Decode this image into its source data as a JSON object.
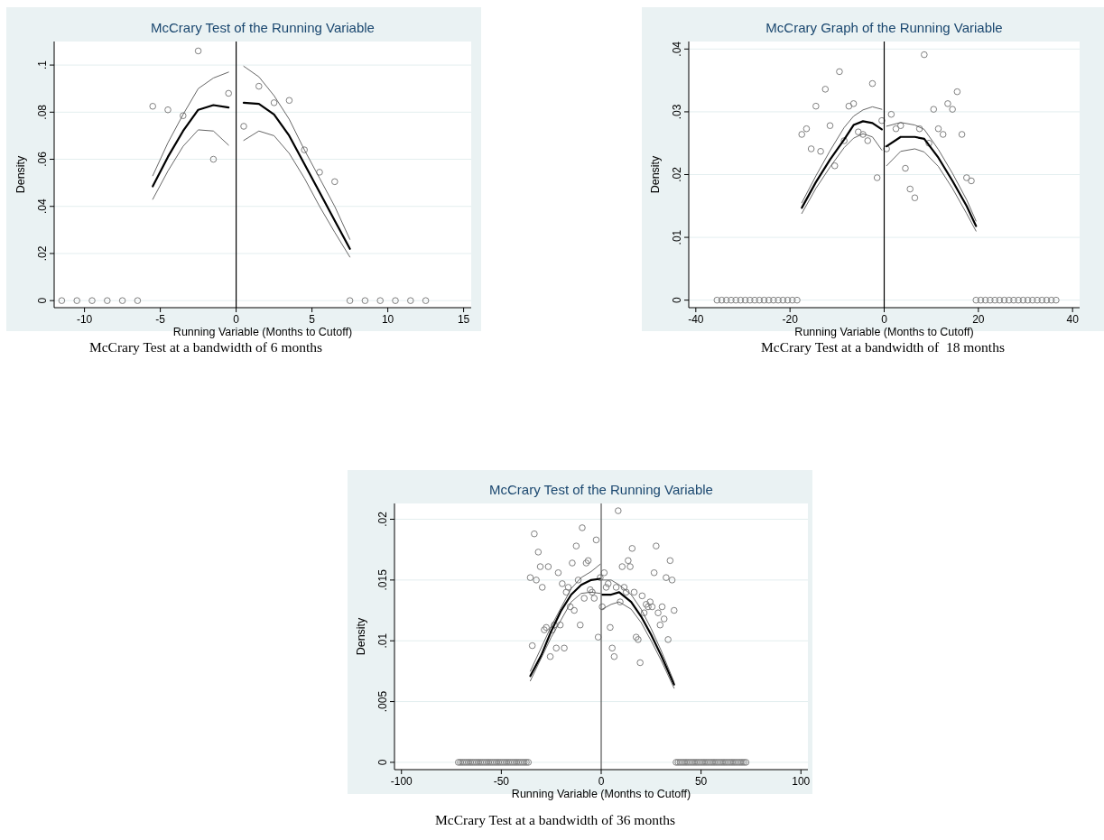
{
  "chart_data": [
    {
      "type": "scatter",
      "title": "McCrary Test of the Running Variable",
      "xlabel": "Running Variable (Months to Cutoff)",
      "ylabel": "Density",
      "xlim": [
        -12,
        15.5
      ],
      "ylim": [
        -0.003,
        0.11
      ],
      "xticks": [
        -10,
        -5,
        0,
        5,
        10,
        15
      ],
      "yticks": [
        {
          "value": 0,
          "label": "0"
        },
        {
          "value": 0.02,
          "label": ".02"
        },
        {
          "value": 0.04,
          "label": ".04"
        },
        {
          "value": 0.06,
          "label": ".06"
        },
        {
          "value": 0.08,
          "label": ".08"
        },
        {
          "value": 0.1,
          "label": ".1"
        }
      ],
      "grid": "y",
      "annotations": [
        "McCrary Test at a bandwidth of 6 months"
      ],
      "ref_lines": [
        {
          "axis": "x",
          "value": 0,
          "color": "#000000"
        }
      ],
      "series": [
        {
          "type": "scatter",
          "marker": "circle",
          "color": "#808080",
          "x": [
            -11.5,
            -10.5,
            -9.5,
            -8.5,
            -7.5,
            -6.5,
            -5.5,
            -4.5,
            -3.5,
            -2.5,
            -1.5,
            -0.5,
            0.5,
            1.5,
            2.5,
            3.5,
            4.5,
            5.5,
            6.5,
            7.5,
            8.5,
            9.5,
            10.5,
            11.5,
            12.5
          ],
          "values": [
            0,
            0,
            0,
            0,
            0,
            0,
            0.0825,
            0.081,
            0.0785,
            0.106,
            0.06,
            0.088,
            0.074,
            0.091,
            0.084,
            0.085,
            0.064,
            0.0545,
            0.0505,
            0,
            0,
            0,
            0,
            0,
            0
          ]
        },
        {
          "type": "line",
          "color": "#000000",
          "x": [
            -5.5,
            -4.5,
            -3.5,
            -2.5,
            -1.5,
            -0.5
          ],
          "values": [
            0.0485,
            0.061,
            0.072,
            0.081,
            0.083,
            0.082
          ]
        },
        {
          "type": "line",
          "color": "#555555",
          "x": [
            -5.5,
            -4.5,
            -3.5,
            -2.5,
            -1.5,
            -0.5
          ],
          "values": [
            0.053,
            0.067,
            0.079,
            0.09,
            0.0945,
            0.097
          ]
        },
        {
          "type": "line",
          "color": "#555555",
          "x": [
            -5.5,
            -4.5,
            -3.5,
            -2.5,
            -1.5,
            -0.5
          ],
          "values": [
            0.043,
            0.055,
            0.0655,
            0.0725,
            0.072,
            0.066
          ]
        },
        {
          "type": "line",
          "color": "#000000",
          "x": [
            0.5,
            1.5,
            2.5,
            3.5,
            4.5,
            5.5,
            6.5,
            7.5
          ],
          "values": [
            0.084,
            0.0835,
            0.079,
            0.07,
            0.058,
            0.046,
            0.034,
            0.022
          ]
        },
        {
          "type": "line",
          "color": "#555555",
          "x": [
            0.5,
            1.5,
            2.5,
            3.5,
            4.5,
            5.5,
            6.5,
            7.5
          ],
          "values": [
            0.0995,
            0.095,
            0.087,
            0.077,
            0.064,
            0.052,
            0.04,
            0.026
          ]
        },
        {
          "type": "line",
          "color": "#555555",
          "x": [
            0.5,
            1.5,
            2.5,
            3.5,
            4.5,
            5.5,
            6.5,
            7.5
          ],
          "values": [
            0.068,
            0.072,
            0.07,
            0.0625,
            0.052,
            0.04,
            0.029,
            0.0185
          ]
        }
      ]
    },
    {
      "type": "scatter",
      "title": "McCrary Graph of the Running Variable",
      "xlabel": "Running Variable (Months to Cutoff)",
      "ylabel": "Density",
      "xlim": [
        -41.5,
        41.5
      ],
      "ylim": [
        -0.0012,
        0.0412
      ],
      "xticks": [
        -40,
        -20,
        0,
        20,
        40
      ],
      "yticks": [
        {
          "value": 0,
          "label": "0"
        },
        {
          "value": 0.01,
          "label": ".01"
        },
        {
          "value": 0.02,
          "label": ".02"
        },
        {
          "value": 0.03,
          "label": ".03"
        },
        {
          "value": 0.04,
          "label": ".04"
        }
      ],
      "grid": "y",
      "annotations": [
        "McCrary Test at a bandwidth of  18 months"
      ],
      "ref_lines": [
        {
          "axis": "x",
          "value": 0,
          "color": "#000000"
        }
      ],
      "series": [
        {
          "type": "scatter",
          "marker": "circle",
          "color": "#808080",
          "x": [
            -35.5,
            -34.5,
            -33.5,
            -32.5,
            -31.5,
            -30.5,
            -29.5,
            -28.5,
            -27.5,
            -26.5,
            -25.5,
            -24.5,
            -23.5,
            -22.5,
            -21.5,
            -20.5,
            -19.5,
            -18.5,
            -17.5,
            -16.5,
            -15.5,
            -14.5,
            -13.5,
            -12.5,
            -11.5,
            -10.5,
            -9.5,
            -8.5,
            -7.5,
            -6.5,
            -5.5,
            -4.5,
            -3.5,
            -2.5,
            -1.5,
            -0.5,
            0.5,
            1.5,
            2.5,
            3.5,
            4.5,
            5.5,
            6.5,
            7.5,
            8.5,
            9.5,
            10.5,
            11.5,
            12.5,
            13.5,
            14.5,
            15.5,
            16.5,
            17.5,
            18.5,
            19.5,
            20.5,
            21.5,
            22.5,
            23.5,
            24.5,
            25.5,
            26.5,
            27.5,
            28.5,
            29.5,
            30.5,
            31.5,
            32.5,
            33.5,
            34.5,
            35.5,
            36.5
          ],
          "values": [
            0,
            0,
            0,
            0,
            0,
            0,
            0,
            0,
            0,
            0,
            0,
            0,
            0,
            0,
            0,
            0,
            0,
            0,
            0.0264,
            0.0273,
            0.0241,
            0.0309,
            0.0237,
            0.0336,
            0.0278,
            0.0214,
            0.0364,
            0.0254,
            0.0309,
            0.0313,
            0.0268,
            0.0264,
            0.0254,
            0.0345,
            0.0195,
            0.0286,
            0.0241,
            0.0296,
            0.0273,
            0.0278,
            0.021,
            0.0177,
            0.0163,
            0.0273,
            0.0391,
            0.025,
            0.0304,
            0.0273,
            0.0264,
            0.0313,
            0.0304,
            0.0332,
            0.0264,
            0.0195,
            0.019,
            0,
            0,
            0,
            0,
            0,
            0,
            0,
            0,
            0,
            0,
            0,
            0,
            0,
            0,
            0,
            0,
            0,
            0
          ]
        },
        {
          "type": "line",
          "color": "#000000",
          "x": [
            -17.5,
            -14.5,
            -11.5,
            -8.5,
            -6.5,
            -4.5,
            -2.5,
            -0.5
          ],
          "values": [
            0.0147,
            0.0188,
            0.0224,
            0.0256,
            0.0279,
            0.0285,
            0.0282,
            0.0272
          ]
        },
        {
          "type": "line",
          "color": "#555555",
          "x": [
            -17.5,
            -14.5,
            -11.5,
            -8.5,
            -6.5,
            -4.5,
            -2.5,
            -0.5
          ],
          "values": [
            0.0155,
            0.0198,
            0.0238,
            0.0275,
            0.0293,
            0.0303,
            0.0308,
            0.0304
          ]
        },
        {
          "type": "line",
          "color": "#555555",
          "x": [
            -17.5,
            -14.5,
            -11.5,
            -8.5,
            -6.5,
            -4.5,
            -2.5,
            -0.5
          ],
          "values": [
            0.0138,
            0.0178,
            0.0212,
            0.0243,
            0.0258,
            0.0265,
            0.026,
            0.0239
          ]
        },
        {
          "type": "line",
          "color": "#000000",
          "x": [
            0.5,
            3.5,
            6.5,
            8.5,
            11.5,
            14.5,
            17.5,
            19.5
          ],
          "values": [
            0.0245,
            0.026,
            0.026,
            0.0257,
            0.0227,
            0.019,
            0.015,
            0.0118
          ]
        },
        {
          "type": "line",
          "color": "#555555",
          "x": [
            0.5,
            3.5,
            6.5,
            8.5,
            11.5,
            14.5,
            17.5,
            19.5
          ],
          "values": [
            0.0277,
            0.0283,
            0.0279,
            0.0272,
            0.024,
            0.0202,
            0.016,
            0.0126
          ]
        },
        {
          "type": "line",
          "color": "#555555",
          "x": [
            0.5,
            3.5,
            6.5,
            8.5,
            11.5,
            14.5,
            17.5,
            19.5
          ],
          "values": [
            0.0214,
            0.0237,
            0.0241,
            0.0236,
            0.0213,
            0.0178,
            0.0138,
            0.011
          ]
        }
      ]
    },
    {
      "type": "scatter",
      "title": "McCrary Test of the Running Variable",
      "xlabel": "Running Variable (Months to Cutoff)",
      "ylabel": "Density",
      "xlim": [
        -103.5,
        103.5
      ],
      "ylim": [
        -0.0006,
        0.0213
      ],
      "xticks": [
        -100,
        -50,
        0,
        50,
        100
      ],
      "yticks": [
        {
          "value": 0,
          "label": "0"
        },
        {
          "value": 0.005,
          "label": ".005"
        },
        {
          "value": 0.01,
          "label": ".01"
        },
        {
          "value": 0.015,
          "label": ".015"
        },
        {
          "value": 0.02,
          "label": ".02"
        }
      ],
      "grid": "y",
      "annotations": [
        "McCrary Test at a bandwidth of 36 months"
      ],
      "ref_lines": [
        {
          "axis": "x",
          "value": 0,
          "color": "#555555"
        }
      ],
      "series": [
        {
          "type": "scatter",
          "marker": "circle",
          "color": "#808080",
          "x": [
            -71.5,
            -70.5,
            -69.5,
            -68.5,
            -67.5,
            -66.5,
            -65.5,
            -64.5,
            -63.5,
            -62.5,
            -61.5,
            -60.5,
            -59.5,
            -58.5,
            -57.5,
            -56.5,
            -55.5,
            -54.5,
            -53.5,
            -52.5,
            -51.5,
            -50.5,
            -49.5,
            -48.5,
            -47.5,
            -46.5,
            -45.5,
            -44.5,
            -43.5,
            -42.5,
            -41.5,
            -40.5,
            -39.5,
            -38.5,
            -37.5,
            -36.5,
            -35.5,
            -34.5,
            -33.5,
            -32.5,
            -31.5,
            -30.5,
            -29.5,
            -28.5,
            -27.5,
            -26.5,
            -25.5,
            -24.5,
            -23.5,
            -22.5,
            -21.5,
            -20.5,
            -19.5,
            -18.5,
            -17.5,
            -16.5,
            -15.5,
            -14.5,
            -13.5,
            -12.5,
            -11.5,
            -10.5,
            -9.5,
            -8.5,
            -7.5,
            -6.5,
            -5.5,
            -4.5,
            -3.5,
            -2.5,
            -1.5,
            -0.5,
            0.5,
            1.5,
            2.5,
            3.5,
            4.5,
            5.5,
            6.5,
            7.5,
            8.5,
            9.5,
            10.5,
            11.5,
            12.5,
            13.5,
            14.5,
            15.5,
            16.5,
            17.5,
            18.5,
            19.5,
            20.5,
            21.5,
            22.5,
            23.5,
            24.5,
            25.5,
            26.5,
            27.5,
            28.5,
            29.5,
            30.5,
            31.5,
            32.5,
            33.5,
            34.5,
            35.5,
            36.5,
            37.5,
            38.5,
            39.5,
            40.5,
            41.5,
            42.5,
            43.5,
            44.5,
            45.5,
            46.5,
            47.5,
            48.5,
            49.5,
            50.5,
            51.5,
            52.5,
            53.5,
            54.5,
            55.5,
            56.5,
            57.5,
            58.5,
            59.5,
            60.5,
            61.5,
            62.5,
            63.5,
            64.5,
            65.5,
            66.5,
            67.5,
            68.5,
            69.5,
            70.5,
            71.5,
            72.5
          ],
          "values": [
            0,
            0,
            0,
            0,
            0,
            0,
            0,
            0,
            0,
            0,
            0,
            0,
            0,
            0,
            0,
            0,
            0,
            0,
            0,
            0,
            0,
            0,
            0,
            0,
            0,
            0,
            0,
            0,
            0,
            0,
            0,
            0,
            0,
            0,
            0,
            0,
            0.0152,
            0.0096,
            0.0188,
            0.015,
            0.0173,
            0.0161,
            0.0144,
            0.0109,
            0.0111,
            0.0161,
            0.0087,
            0.0109,
            0.0113,
            0.0094,
            0.0156,
            0.0113,
            0.0147,
            0.0094,
            0.014,
            0.0144,
            0.0128,
            0.0164,
            0.0125,
            0.0178,
            0.015,
            0.0113,
            0.0193,
            0.0135,
            0.0164,
            0.0166,
            0.0142,
            0.014,
            0.0135,
            0.0183,
            0.0103,
            0.0152,
            0.0128,
            0.0156,
            0.0144,
            0.0147,
            0.0111,
            0.0094,
            0.0087,
            0.0144,
            0.0207,
            0.0132,
            0.0161,
            0.0144,
            0.014,
            0.0166,
            0.0161,
            0.0176,
            0.014,
            0.0103,
            0.0101,
            0.0082,
            0.0137,
            0.0123,
            0.013,
            0.0128,
            0.0132,
            0.0128,
            0.0156,
            0.0178,
            0.0123,
            0.0113,
            0.0128,
            0.0118,
            0.0152,
            0.0101,
            0.0166,
            0.015,
            0.0125,
            0,
            0,
            0,
            0,
            0,
            0,
            0,
            0,
            0,
            0,
            0,
            0,
            0,
            0,
            0,
            0,
            0,
            0,
            0,
            0,
            0,
            0,
            0,
            0,
            0,
            0,
            0,
            0,
            0,
            0,
            0,
            0,
            0,
            0,
            0,
            0
          ]
        },
        {
          "type": "line",
          "color": "#000000",
          "x": [
            -35.5,
            -30,
            -25,
            -20,
            -15,
            -10,
            -5,
            -0.5
          ],
          "values": [
            0.0071,
            0.0088,
            0.0108,
            0.0125,
            0.0138,
            0.0146,
            0.015,
            0.0151
          ]
        },
        {
          "type": "line",
          "color": "#555555",
          "x": [
            -35.5,
            -25,
            -15,
            -10,
            -5,
            -0.5
          ],
          "values": [
            0.0075,
            0.0112,
            0.0143,
            0.0152,
            0.0157,
            0.0163
          ]
        },
        {
          "type": "line",
          "color": "#555555",
          "x": [
            -35.5,
            -25,
            -15,
            -10,
            -5,
            -0.5
          ],
          "values": [
            0.0067,
            0.0103,
            0.0132,
            0.0139,
            0.014,
            0.0139
          ]
        },
        {
          "type": "line",
          "color": "#000000",
          "x": [
            0.5,
            5,
            9,
            15,
            20,
            25,
            30,
            36.5
          ],
          "values": [
            0.0138,
            0.0138,
            0.014,
            0.0132,
            0.012,
            0.0105,
            0.0088,
            0.0064
          ]
        },
        {
          "type": "line",
          "color": "#555555",
          "x": [
            0.5,
            5,
            9,
            15,
            20,
            25,
            30,
            36.5
          ],
          "values": [
            0.015,
            0.015,
            0.0146,
            0.0138,
            0.0126,
            0.011,
            0.0092,
            0.0066
          ]
        },
        {
          "type": "line",
          "color": "#555555",
          "x": [
            0.5,
            5,
            9,
            15,
            20,
            25,
            30,
            36.5
          ],
          "values": [
            0.0126,
            0.013,
            0.0132,
            0.0126,
            0.0115,
            0.01,
            0.0084,
            0.0061
          ]
        }
      ]
    }
  ]
}
